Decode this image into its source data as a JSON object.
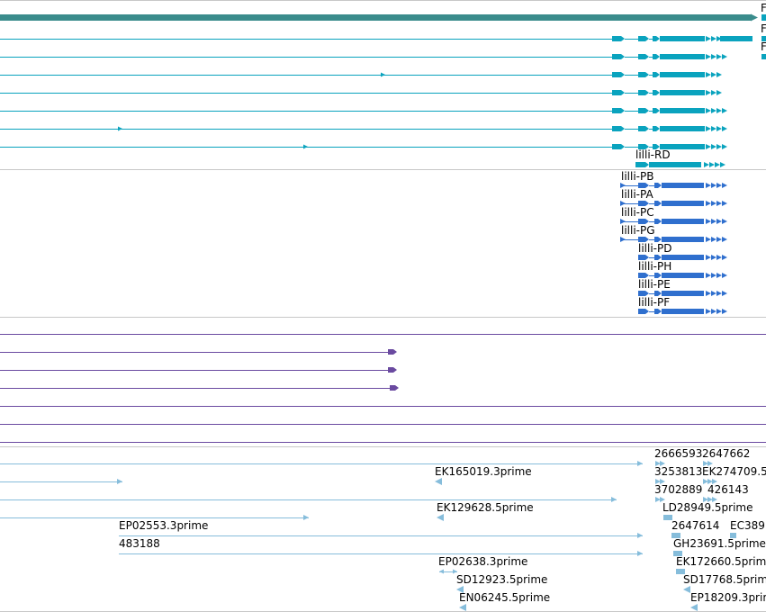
{
  "colors": {
    "teal_dark": "#3a8c8c",
    "teal": "#0aa3be",
    "blue": "#2f6fce",
    "purple": "#6a4aa0",
    "light_blue": "#86bddb",
    "separator": "#c8c8c8"
  },
  "tracks": {
    "track1": {
      "labels": [
        "F",
        "F",
        "F"
      ]
    },
    "track2": {
      "label_rd": "lilli-RD",
      "transcripts": [
        "lilli-PB",
        "lilli-PA",
        "lilli-PC",
        "lilli-PG",
        "lilli-PD",
        "lilli-PH",
        "lilli-PE",
        "lilli-PF"
      ]
    },
    "track4": {
      "labels": [
        "2666593",
        "2647662",
        "EK165019.3prime",
        "3253813",
        "EK274709.5",
        "3702889",
        "426143",
        "EK129628.5prime",
        "LD28949.5prime",
        "EP02553.3prime",
        "2647614",
        "EC389",
        "483188",
        "GH23691.5prime",
        "EP02638.3prime",
        "EK172660.5prim",
        "SD12923.5prime",
        "SD17768.5prime",
        "EN06245.5prime",
        "EP18209.3prime"
      ]
    }
  }
}
